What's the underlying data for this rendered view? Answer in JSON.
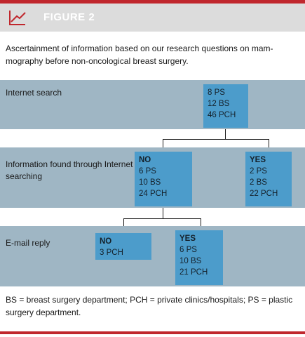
{
  "figure": {
    "title": "FIGURE 2",
    "icon": "line-chart-icon",
    "accent_color": "#c0272d",
    "caption": "Ascertainment of information based on our research questions on mam-mography before non-oncological breast surgery.",
    "footnote": "BS = breast surgery department; PCH = private clinics/hospitals; PS = plastic surgery department."
  },
  "rows": [
    {
      "label": "Internet search",
      "boxes": [
        {
          "header": "",
          "lines": [
            "8 PS",
            "12 BS",
            "46 PCH"
          ]
        }
      ]
    },
    {
      "label": "Information found through Internet searching",
      "boxes": [
        {
          "header": "NO",
          "lines": [
            "6 PS",
            "10 BS",
            "24 PCH"
          ]
        },
        {
          "header": "YES",
          "lines": [
            "2 PS",
            "2 BS",
            "22 PCH"
          ]
        }
      ]
    },
    {
      "label": "E-mail reply",
      "boxes": [
        {
          "header": "NO",
          "lines": [
            "3 PCH"
          ]
        },
        {
          "header": "YES",
          "lines": [
            "6 PS",
            "10 BS",
            "21 PCH"
          ]
        }
      ]
    }
  ]
}
